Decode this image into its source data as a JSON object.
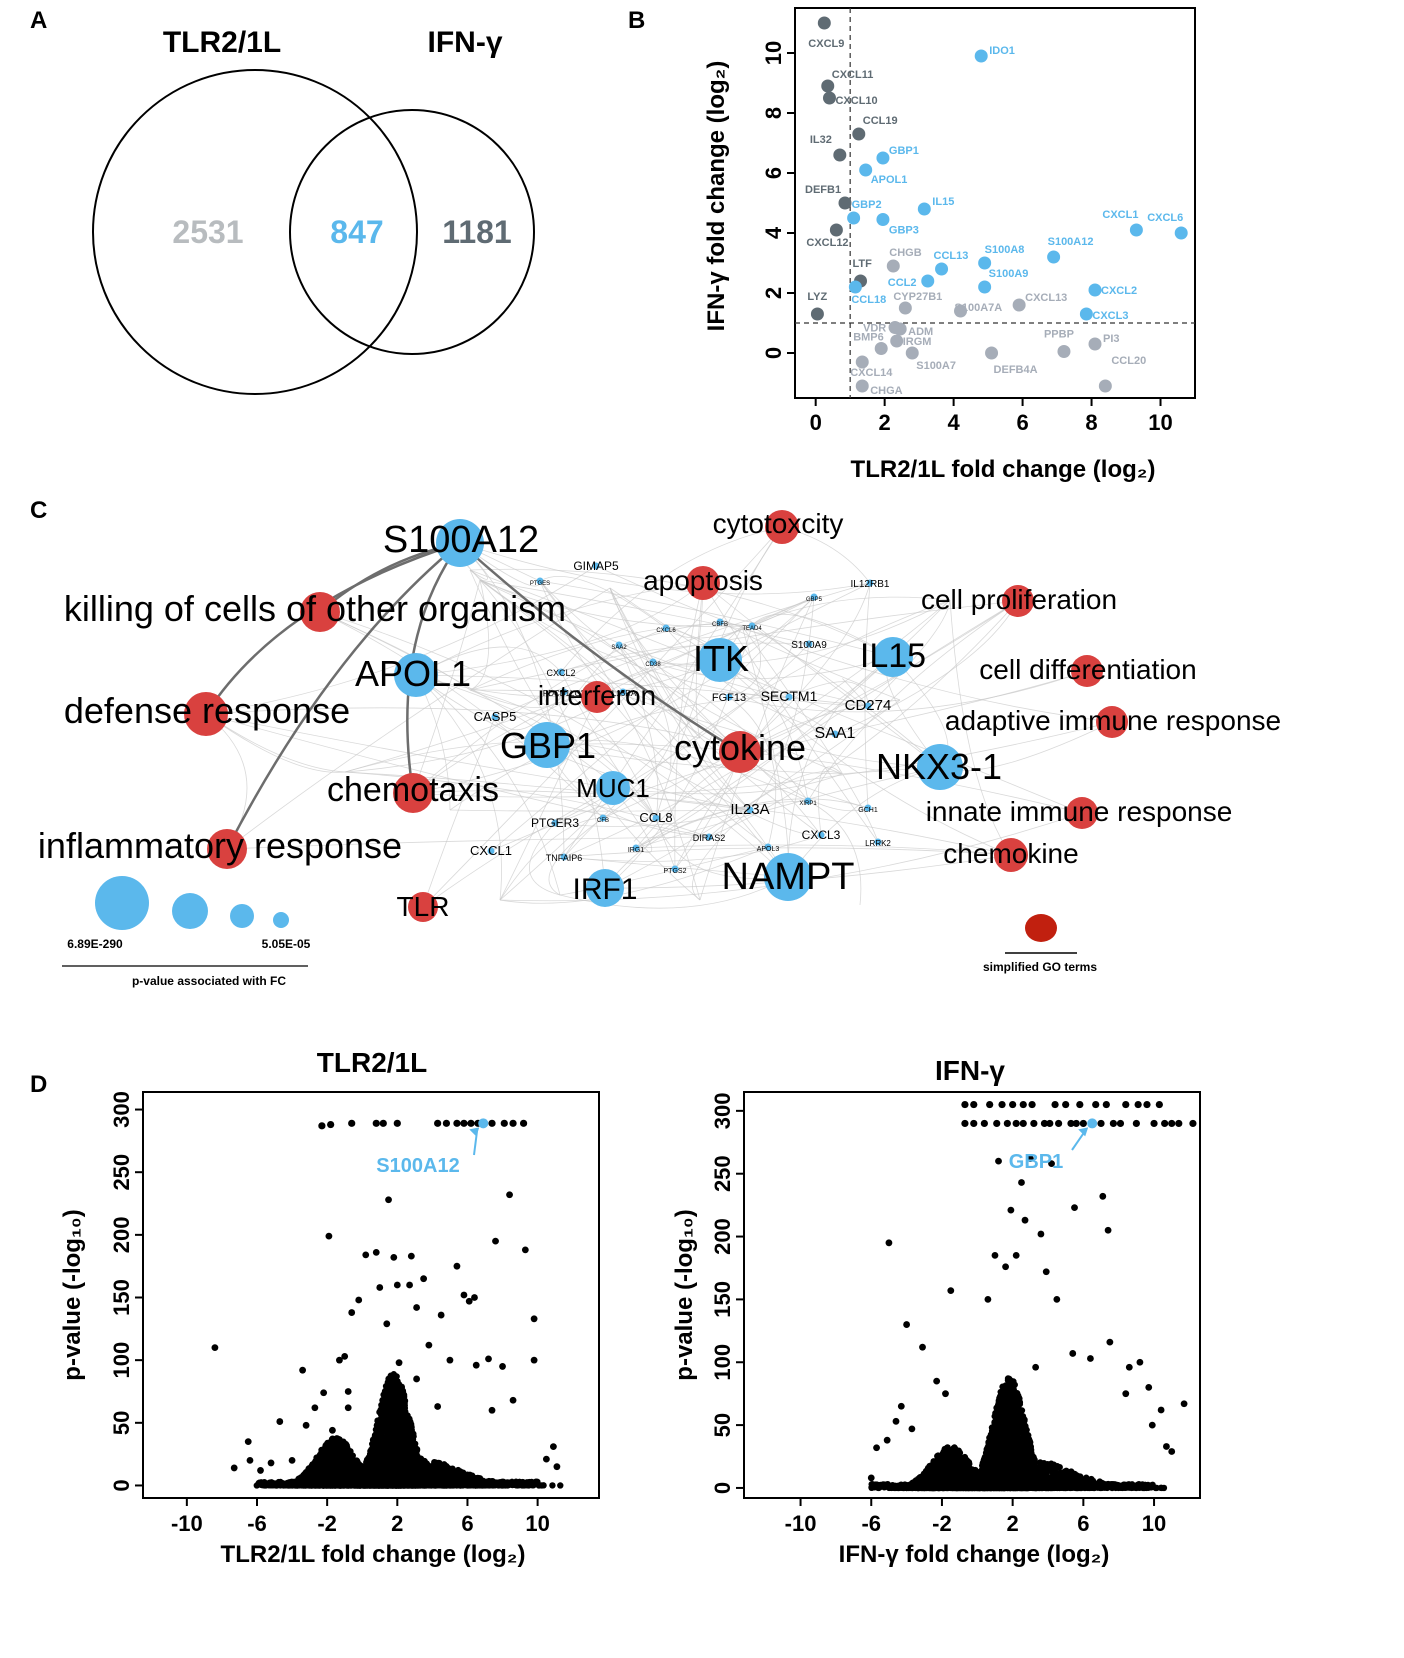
{
  "panel_letters": {
    "a": "A",
    "b": "B",
    "c": "C",
    "d": "D"
  },
  "colors": {
    "blue": "#5bb8ec",
    "dark": "#5f6b73",
    "light": "#a6adb8",
    "red": "#d9413f",
    "legend_red": "#c1200f",
    "black": "#000000"
  },
  "chart_data": [
    {
      "panel": "A",
      "type": "venn",
      "sets": [
        {
          "name": "TLR2/1L",
          "only": "2531"
        },
        {
          "name": "IFN-γ",
          "only": "1181"
        }
      ],
      "intersection": "847"
    },
    {
      "panel": "B",
      "type": "scatter",
      "xlabel": "TLR2/1L fold change (log₂)",
      "ylabel": "IFN-γ fold change (log₂)",
      "xlim": [
        -0.6,
        11
      ],
      "ylim": [
        -1.5,
        11.5
      ],
      "xticks": [
        0,
        2,
        4,
        6,
        8,
        10
      ],
      "yticks": [
        0,
        2,
        4,
        6,
        8,
        10
      ],
      "thresholds": {
        "x": 1,
        "y": 1
      },
      "points": [
        {
          "label": "CXCL9",
          "x": 0.25,
          "y": 11.0,
          "group": "dark"
        },
        {
          "label": "CXCL11",
          "x": 0.35,
          "y": 8.9,
          "group": "dark"
        },
        {
          "label": "CXCL10",
          "x": 0.4,
          "y": 8.5,
          "group": "dark"
        },
        {
          "label": "IL32",
          "x": 0.7,
          "y": 6.6,
          "group": "dark"
        },
        {
          "label": "CCL19",
          "x": 1.25,
          "y": 7.3,
          "group": "dark"
        },
        {
          "label": "DEFB1",
          "x": 0.85,
          "y": 5.0,
          "group": "dark"
        },
        {
          "label": "CXCL12",
          "x": 0.6,
          "y": 4.1,
          "group": "dark"
        },
        {
          "label": "LTF",
          "x": 1.3,
          "y": 2.4,
          "group": "dark"
        },
        {
          "label": "LYZ",
          "x": 0.05,
          "y": 1.3,
          "group": "dark"
        },
        {
          "label": "IDO1",
          "x": 4.8,
          "y": 9.9,
          "group": "blue"
        },
        {
          "label": "GBP1",
          "x": 1.95,
          "y": 6.5,
          "group": "blue"
        },
        {
          "label": "APOL1",
          "x": 1.45,
          "y": 6.1,
          "group": "blue"
        },
        {
          "label": "IL15",
          "x": 3.15,
          "y": 4.8,
          "group": "blue"
        },
        {
          "label": "GBP2",
          "x": 1.1,
          "y": 4.5,
          "group": "blue"
        },
        {
          "label": "GBP3",
          "x": 1.95,
          "y": 4.45,
          "group": "blue"
        },
        {
          "label": "CXCL1",
          "x": 9.3,
          "y": 4.1,
          "group": "blue"
        },
        {
          "label": "CXCL6",
          "x": 10.6,
          "y": 4.0,
          "group": "blue"
        },
        {
          "label": "S100A12",
          "x": 6.9,
          "y": 3.2,
          "group": "blue"
        },
        {
          "label": "S100A8",
          "x": 4.9,
          "y": 3.0,
          "group": "blue"
        },
        {
          "label": "CCL13",
          "x": 3.65,
          "y": 2.8,
          "group": "blue"
        },
        {
          "label": "CCL2",
          "x": 3.25,
          "y": 2.4,
          "group": "blue"
        },
        {
          "label": "S100A9",
          "x": 4.9,
          "y": 2.2,
          "group": "blue"
        },
        {
          "label": "CCL18",
          "x": 1.15,
          "y": 2.2,
          "group": "blue"
        },
        {
          "label": "CXCL2",
          "x": 8.1,
          "y": 2.1,
          "group": "blue"
        },
        {
          "label": "CXCL3",
          "x": 7.85,
          "y": 1.3,
          "group": "blue"
        },
        {
          "label": "CHGB",
          "x": 2.25,
          "y": 2.9,
          "group": "light"
        },
        {
          "label": "CYP27B1",
          "x": 2.6,
          "y": 1.5,
          "group": "light"
        },
        {
          "label": "S100A7A",
          "x": 4.2,
          "y": 1.4,
          "group": "light"
        },
        {
          "label": "CXCL13",
          "x": 5.9,
          "y": 1.6,
          "group": "light"
        },
        {
          "label": "VDR",
          "x": 2.3,
          "y": 0.85,
          "group": "light"
        },
        {
          "label": "ADM",
          "x": 2.45,
          "y": 0.8,
          "group": "light"
        },
        {
          "label": "IRGM",
          "x": 2.35,
          "y": 0.4,
          "group": "light"
        },
        {
          "label": "BMP6",
          "x": 1.9,
          "y": 0.15,
          "group": "light"
        },
        {
          "label": "S100A7",
          "x": 2.8,
          "y": 0.0,
          "group": "light"
        },
        {
          "label": "DEFB4A",
          "x": 5.1,
          "y": 0.0,
          "group": "light"
        },
        {
          "label": "PPBP",
          "x": 7.2,
          "y": 0.05,
          "group": "light"
        },
        {
          "label": "PI3",
          "x": 8.1,
          "y": 0.3,
          "group": "light"
        },
        {
          "label": "CCL20",
          "x": 8.4,
          "y": -1.1,
          "group": "light"
        },
        {
          "label": "CXCL14",
          "x": 1.35,
          "y": -0.3,
          "group": "light"
        },
        {
          "label": "CHGA",
          "x": 1.35,
          "y": -1.1,
          "group": "light"
        }
      ]
    },
    {
      "panel": "C",
      "type": "network",
      "go_terms": [
        "cytotoxcity",
        "apoptosis",
        "cell proliferation",
        "cell differentiation",
        "adaptive immune response",
        "innate immune response",
        "chemokine",
        "killing of cells of other organism",
        "defense response",
        "chemotaxis",
        "inflammatory response",
        "TLR",
        "interferon",
        "cytokine"
      ],
      "genes_large": [
        "S100A12",
        "APOL1",
        "GBP1",
        "ITK",
        "IL15",
        "NKX3-1",
        "NAMPT",
        "IRF1",
        "MUC1"
      ],
      "genes_small": [
        "GIMAP5",
        "IL12RB1",
        "S100A9",
        "CXCL2",
        "CASP5",
        "FGF13",
        "SECTM1",
        "CD274",
        "SAA1",
        "PTGER3",
        "CCL8",
        "IL23A",
        "CXCL3",
        "CXCL1",
        "TNFAIP6",
        "DIRAS2",
        "LRRK2",
        "GCH1",
        "IRG1",
        "PTGS2",
        "APOL3",
        "PDCD1LG2",
        "IL15RA",
        "TEAD4",
        "GBP5",
        "CXCL6",
        "PTGES",
        "SAA2",
        "CD38",
        "CFB",
        "CBFB",
        "XIRP1"
      ],
      "legend_sizes": {
        "max": "6.89E-290",
        "min": "5.05E-05",
        "caption": "p-value associated with FC"
      },
      "legend_go": "simplified GO terms"
    },
    {
      "panel": "D-left",
      "type": "scatter",
      "title": "TLR2/1L",
      "xlabel": "TLR2/1L fold change (log₂)",
      "ylabel": "p-value (-log₁₀)",
      "xlim": [
        -12.5,
        13.5
      ],
      "ylim": [
        -10,
        314
      ],
      "xticks": [
        -10,
        -6,
        -2,
        2,
        6,
        10
      ],
      "yticks": [
        0,
        50,
        100,
        150,
        200,
        250,
        300
      ],
      "highlight": {
        "label": "S100A12",
        "x": 6.9,
        "y": 289
      },
      "points_top": [
        [
          -2.3,
          287
        ],
        [
          -1.8,
          288
        ],
        [
          -0.6,
          289
        ],
        [
          0.8,
          289
        ],
        [
          1.2,
          289
        ],
        [
          2.0,
          289
        ],
        [
          4.3,
          289
        ],
        [
          4.8,
          289
        ],
        [
          5.4,
          289
        ],
        [
          5.8,
          289
        ],
        [
          6.2,
          289
        ],
        [
          6.6,
          289
        ],
        [
          7.4,
          289
        ],
        [
          8.1,
          289
        ],
        [
          8.6,
          289
        ],
        [
          9.2,
          289
        ]
      ],
      "points_outliers": [
        [
          -8.4,
          110
        ],
        [
          -1.9,
          199
        ],
        [
          1.5,
          228
        ],
        [
          5.4,
          175
        ],
        [
          8.4,
          232
        ],
        [
          7.6,
          195
        ],
        [
          9.3,
          188
        ],
        [
          9.8,
          133
        ],
        [
          4.5,
          136
        ],
        [
          5.8,
          152
        ],
        [
          6.4,
          150
        ],
        [
          6.1,
          147
        ],
        [
          3.5,
          165
        ],
        [
          2.7,
          160
        ],
        [
          -0.2,
          148
        ],
        [
          0.8,
          186
        ],
        [
          0.2,
          184
        ],
        [
          1.8,
          182
        ],
        [
          2.0,
          160
        ],
        [
          1.0,
          158
        ],
        [
          2.8,
          183
        ],
        [
          3.1,
          142
        ],
        [
          1.4,
          129
        ],
        [
          -1.3,
          100
        ],
        [
          -3.4,
          92
        ],
        [
          -0.6,
          138
        ],
        [
          -2.2,
          74
        ],
        [
          -0.8,
          75
        ],
        [
          -1.0,
          103
        ],
        [
          -2.7,
          62
        ],
        [
          6.5,
          96
        ],
        [
          8.0,
          95
        ],
        [
          7.2,
          101
        ],
        [
          8.6,
          68
        ],
        [
          9.8,
          100
        ],
        [
          5.0,
          100
        ],
        [
          4.3,
          63
        ],
        [
          3.8,
          112
        ],
        [
          3.1,
          85
        ],
        [
          7.4,
          60
        ],
        [
          10.5,
          21
        ],
        [
          10.9,
          31
        ],
        [
          11.1,
          15
        ],
        [
          -6.4,
          20
        ],
        [
          -6.5,
          35
        ],
        [
          -5.8,
          12
        ],
        [
          -7.3,
          14
        ],
        [
          -4.7,
          51
        ],
        [
          -5.2,
          18
        ],
        [
          -4.0,
          20
        ],
        [
          -3.2,
          48
        ],
        [
          -0.8,
          62
        ],
        [
          -1.7,
          44
        ],
        [
          2.1,
          98
        ]
      ],
      "cluster_peak_neg2": 38,
      "cluster_peak_pos2": 90
    },
    {
      "panel": "D-right",
      "type": "scatter",
      "title": "IFN-γ",
      "xlabel": "IFN-γ fold change (log₂)",
      "ylabel": "p-value (-log₁₀)",
      "xlim": [
        -13.2,
        12.6
      ],
      "ylim": [
        -8,
        315
      ],
      "xticks": [
        -10,
        -6,
        -2,
        2,
        6,
        10
      ],
      "yticks": [
        0,
        50,
        100,
        150,
        200,
        250,
        300
      ],
      "highlight": {
        "label": "GBP1",
        "x": 6.5,
        "y": 290
      },
      "points_top": [
        [
          -0.7,
          305
        ],
        [
          -0.2,
          305
        ],
        [
          0.7,
          305
        ],
        [
          1.4,
          305
        ],
        [
          2.0,
          305
        ],
        [
          2.6,
          305
        ],
        [
          3.1,
          305
        ],
        [
          4.4,
          305
        ],
        [
          5.0,
          305
        ],
        [
          5.8,
          305
        ],
        [
          6.7,
          305
        ],
        [
          7.3,
          305
        ],
        [
          8.4,
          305
        ],
        [
          9.1,
          305
        ],
        [
          9.6,
          305
        ],
        [
          10.3,
          305
        ],
        [
          -0.7,
          290
        ],
        [
          -0.2,
          290
        ],
        [
          0.4,
          290
        ],
        [
          1.1,
          290
        ],
        [
          1.7,
          290
        ],
        [
          2.2,
          290
        ],
        [
          2.6,
          290
        ],
        [
          3.2,
          290
        ],
        [
          3.8,
          290
        ],
        [
          4.1,
          290
        ],
        [
          4.6,
          290
        ],
        [
          5.3,
          290
        ],
        [
          5.6,
          290
        ],
        [
          6.0,
          290
        ],
        [
          7.0,
          290
        ],
        [
          7.7,
          290
        ],
        [
          8.1,
          290
        ],
        [
          9.0,
          290
        ],
        [
          10.0,
          290
        ],
        [
          10.6,
          290
        ],
        [
          11.0,
          290
        ],
        [
          11.4,
          290
        ],
        [
          12.2,
          290
        ]
      ],
      "points_outliers": [
        [
          1.2,
          260
        ],
        [
          2.5,
          243
        ],
        [
          3.0,
          262
        ],
        [
          4.2,
          258
        ],
        [
          7.1,
          232
        ],
        [
          7.4,
          205
        ],
        [
          5.5,
          223
        ],
        [
          1.9,
          221
        ],
        [
          2.7,
          213
        ],
        [
          3.6,
          202
        ],
        [
          3.9,
          172
        ],
        [
          0.6,
          150
        ],
        [
          1.6,
          176
        ],
        [
          8.4,
          75
        ],
        [
          9.2,
          100
        ],
        [
          9.7,
          80
        ],
        [
          9.9,
          50
        ],
        [
          10.4,
          62
        ],
        [
          11.0,
          29
        ],
        [
          11.7,
          67
        ],
        [
          10.7,
          33
        ],
        [
          -5.0,
          195
        ],
        [
          -4.0,
          130
        ],
        [
          -3.1,
          112
        ],
        [
          -1.5,
          157
        ],
        [
          -2.3,
          85
        ],
        [
          -4.3,
          65
        ],
        [
          -5.7,
          32
        ],
        [
          -6.0,
          8
        ],
        [
          -5.1,
          38
        ],
        [
          -4.6,
          53
        ],
        [
          -3.7,
          47
        ],
        [
          -1.8,
          75
        ],
        [
          4.5,
          150
        ],
        [
          5.4,
          107
        ],
        [
          6.4,
          103
        ],
        [
          7.5,
          116
        ],
        [
          8.6,
          96
        ],
        [
          3.3,
          96
        ],
        [
          2.2,
          185
        ],
        [
          1.0,
          185
        ]
      ],
      "cluster_peak_neg2": 33,
      "cluster_peak_pos2": 88
    }
  ]
}
